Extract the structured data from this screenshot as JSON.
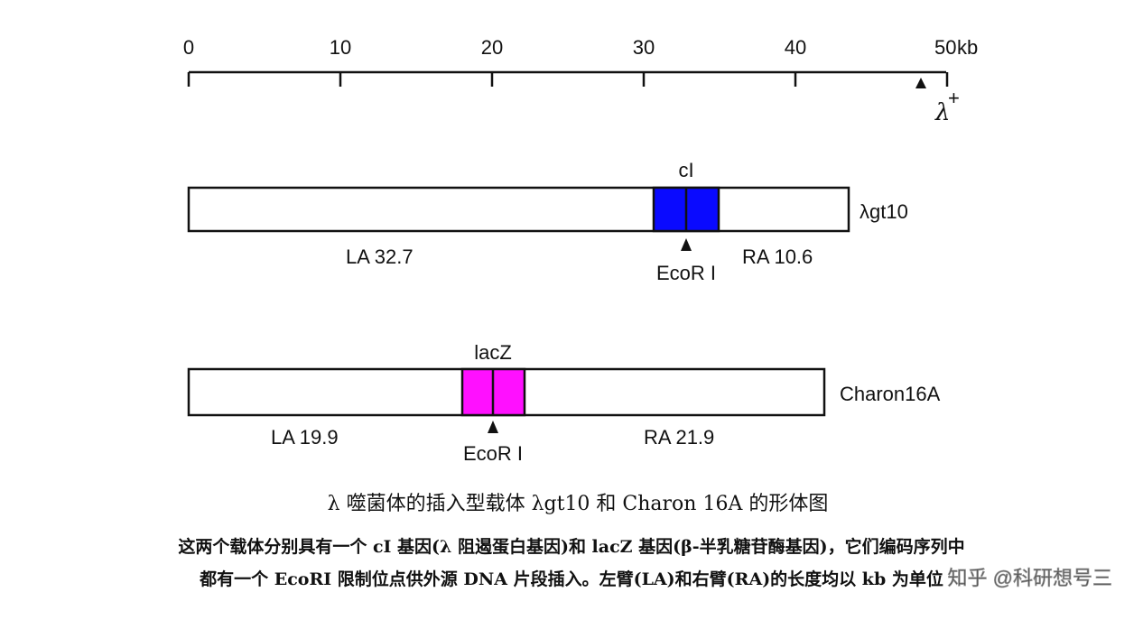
{
  "scale": {
    "ticks": [
      "0",
      "10",
      "20",
      "30",
      "40",
      "50"
    ],
    "unit": "kb",
    "marker": {
      "symbol": "λ",
      "sup": "+"
    }
  },
  "vectors": [
    {
      "gene": "cI",
      "name": "λgt10",
      "left_arm": "LA 32.7",
      "right_arm": "RA 10.6",
      "site": "EcoR I"
    },
    {
      "gene": "lacZ",
      "name": "Charon16A",
      "left_arm": "LA 19.9",
      "right_arm": "RA 21.9",
      "site": "EcoR I"
    }
  ],
  "caption": "λ 噬菌体的插入型载体 λgt10 和 Charon 16A 的形体图",
  "description": [
    "这两个载体分别具有一个 cI 基因(λ 阻遏蛋白基因)和 lacZ 基因(β-半乳糖苷酶基因)，它们编码序列中",
    "都有一个 EcoRI 限制位点供外源 DNA 片段插入。左臂(LA)和右臂(RA)的长度均以 kb 为单位"
  ],
  "watermark": "知乎 @科研想号三"
}
